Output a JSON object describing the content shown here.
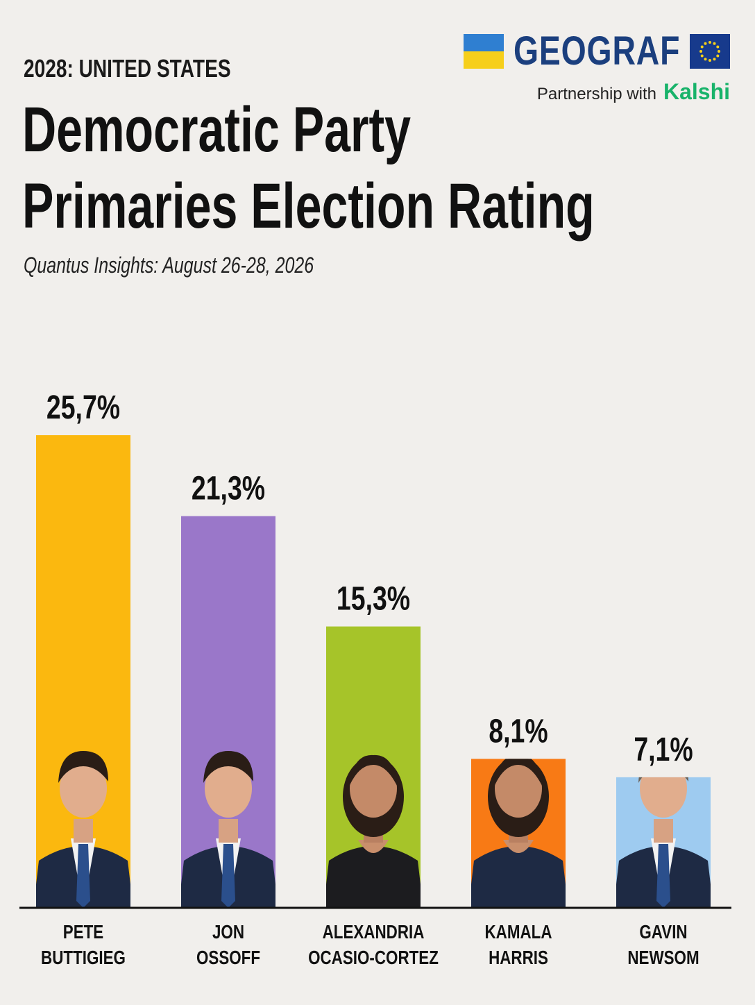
{
  "header": {
    "kicker": "2028: UNITED STATES",
    "title_line1": "Democratic Party",
    "title_line2": "Primaries Election Rating",
    "subtitle": "Quantus Insights: August 26-28, 2026"
  },
  "brand": {
    "name": "GEOGRAF",
    "partnership_text": "Partnership with",
    "partner": "Kalshi",
    "colors": {
      "name": "#1b3f7e",
      "partner": "#18b36a"
    }
  },
  "chart_data": {
    "type": "bar",
    "categories": [
      "PETE BUTTIGIEG",
      "JON OSSOFF",
      "ALEXANDRIA OCASIO-CORTEZ",
      "KAMALA HARRIS",
      "GAVIN NEWSOM"
    ],
    "category_lines": [
      [
        "PETE",
        "BUTTIGIEG"
      ],
      [
        "JON",
        "OSSOFF"
      ],
      [
        "ALEXANDRIA",
        "OCASIO-CORTEZ"
      ],
      [
        "KAMALA",
        "HARRIS"
      ],
      [
        "GAVIN",
        "NEWSOM"
      ]
    ],
    "values": [
      25.7,
      21.3,
      15.3,
      8.1,
      7.1
    ],
    "value_labels": [
      "25,7%",
      "21,3%",
      "15,3%",
      "8,1%",
      "7,1%"
    ],
    "colors": [
      "#fbb80f",
      "#9a77c9",
      "#a6c429",
      "#f87a15",
      "#9ecbf0"
    ],
    "ylim": [
      0,
      31.4
    ],
    "grid": false,
    "legend": "none",
    "title": "Democratic Party Primaries Election Rating",
    "xlabel": "",
    "ylabel": ""
  }
}
